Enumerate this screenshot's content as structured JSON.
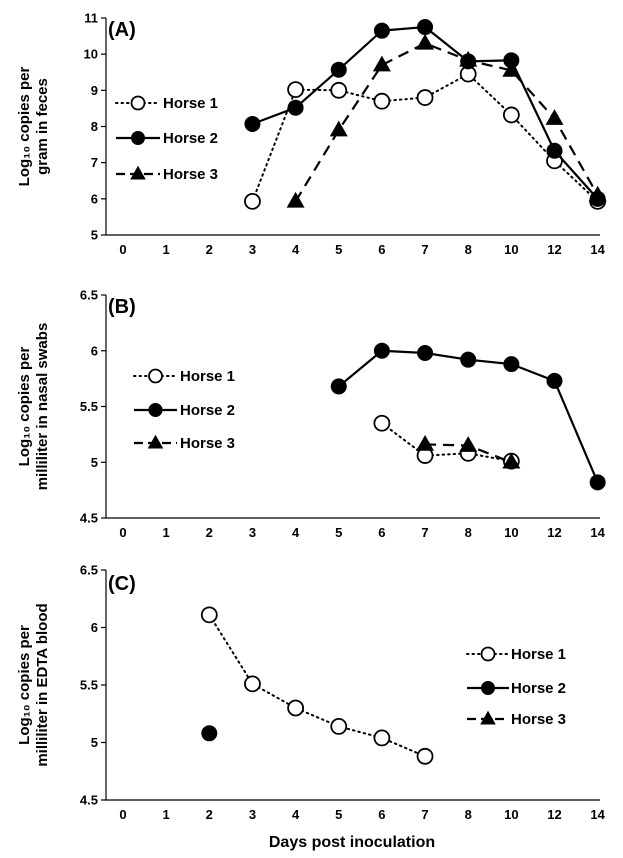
{
  "chart_data": [
    {
      "type": "line",
      "panel_tag": "(A)",
      "ylabel_lines": [
        "Log₁₀ copies per",
        "gram in feces"
      ],
      "x_categories": [
        "0",
        "1",
        "2",
        "3",
        "4",
        "5",
        "6",
        "7",
        "8",
        "10",
        "12",
        "14"
      ],
      "ylim": [
        5,
        11
      ],
      "yticks": [
        "5",
        "6",
        "7",
        "8",
        "9",
        "10",
        "11"
      ],
      "legend_position": "left",
      "series": [
        {
          "name": "Horse 1",
          "marker": "open-circle",
          "line": "dotted",
          "points": [
            {
              "x": "3",
              "y": 5.93
            },
            {
              "x": "4",
              "y": 9.02
            },
            {
              "x": "5",
              "y": 9.0
            },
            {
              "x": "6",
              "y": 8.7
            },
            {
              "x": "7",
              "y": 8.8
            },
            {
              "x": "8",
              "y": 9.45
            },
            {
              "x": "10",
              "y": 8.32
            },
            {
              "x": "12",
              "y": 7.05
            },
            {
              "x": "14",
              "y": 5.93
            }
          ]
        },
        {
          "name": "Horse 2",
          "marker": "filled-circle",
          "line": "solid",
          "points": [
            {
              "x": "3",
              "y": 8.07
            },
            {
              "x": "4",
              "y": 8.52
            },
            {
              "x": "5",
              "y": 9.57
            },
            {
              "x": "6",
              "y": 10.65
            },
            {
              "x": "7",
              "y": 10.75
            },
            {
              "x": "8",
              "y": 9.8
            },
            {
              "x": "10",
              "y": 9.83
            },
            {
              "x": "12",
              "y": 7.33
            },
            {
              "x": "14",
              "y": 6.0
            }
          ]
        },
        {
          "name": "Horse 3",
          "marker": "triangle",
          "line": "dashed",
          "points": [
            {
              "x": "4",
              "y": 5.93
            },
            {
              "x": "5",
              "y": 7.9
            },
            {
              "x": "6",
              "y": 9.7
            },
            {
              "x": "7",
              "y": 10.3
            },
            {
              "x": "8",
              "y": 9.83
            },
            {
              "x": "10",
              "y": 9.55
            },
            {
              "x": "12",
              "y": 8.22
            },
            {
              "x": "14",
              "y": 6.1
            }
          ]
        }
      ]
    },
    {
      "type": "line",
      "panel_tag": "(B)",
      "ylabel_lines": [
        "Log₁₀ copies per",
        "milliliter in nasal swabs"
      ],
      "x_categories": [
        "0",
        "1",
        "2",
        "3",
        "4",
        "5",
        "6",
        "7",
        "8",
        "10",
        "12",
        "14"
      ],
      "ylim": [
        4.5,
        6.5
      ],
      "yticks": [
        "4.5",
        "5",
        "5.5",
        "6",
        "6.5"
      ],
      "legend_position": "left",
      "series": [
        {
          "name": "Horse 1",
          "marker": "open-circle",
          "line": "dotted",
          "points": [
            {
              "x": "6",
              "y": 5.35
            },
            {
              "x": "7",
              "y": 5.06
            },
            {
              "x": "8",
              "y": 5.08
            },
            {
              "x": "10",
              "y": 5.01
            }
          ]
        },
        {
          "name": "Horse 2",
          "marker": "filled-circle",
          "line": "solid",
          "points": [
            {
              "x": "5",
              "y": 5.68
            },
            {
              "x": "6",
              "y": 6.0
            },
            {
              "x": "7",
              "y": 5.98
            },
            {
              "x": "8",
              "y": 5.92
            },
            {
              "x": "10",
              "y": 5.88
            },
            {
              "x": "12",
              "y": 5.73
            },
            {
              "x": "14",
              "y": 4.82
            }
          ]
        },
        {
          "name": "Horse 3",
          "marker": "triangle",
          "line": "dashed",
          "points": [
            {
              "x": "7",
              "y": 5.16
            },
            {
              "x": "8",
              "y": 5.15
            },
            {
              "x": "10",
              "y": 5.0
            }
          ]
        }
      ]
    },
    {
      "type": "line",
      "panel_tag": "(C)",
      "ylabel_lines": [
        "Log₁₀ copies per",
        "milliliter in EDTA blood"
      ],
      "x_categories": [
        "0",
        "1",
        "2",
        "3",
        "4",
        "5",
        "6",
        "7",
        "8",
        "10",
        "12",
        "14"
      ],
      "ylim": [
        4.5,
        6.5
      ],
      "yticks": [
        "4.5",
        "5",
        "5.5",
        "6",
        "6.5"
      ],
      "xlabel": "Days post inoculation",
      "legend_position": "right",
      "series": [
        {
          "name": "Horse 1",
          "marker": "open-circle",
          "line": "dotted",
          "points": [
            {
              "x": "2",
              "y": 6.11
            },
            {
              "x": "3",
              "y": 5.51
            },
            {
              "x": "4",
              "y": 5.3
            },
            {
              "x": "5",
              "y": 5.14
            },
            {
              "x": "6",
              "y": 5.04
            },
            {
              "x": "7",
              "y": 4.88
            }
          ]
        },
        {
          "name": "Horse 2",
          "marker": "filled-circle",
          "line": "solid",
          "points": [
            {
              "x": "2",
              "y": 5.08
            }
          ]
        },
        {
          "name": "Horse 3",
          "marker": "triangle",
          "line": "dashed",
          "points": []
        }
      ]
    }
  ]
}
